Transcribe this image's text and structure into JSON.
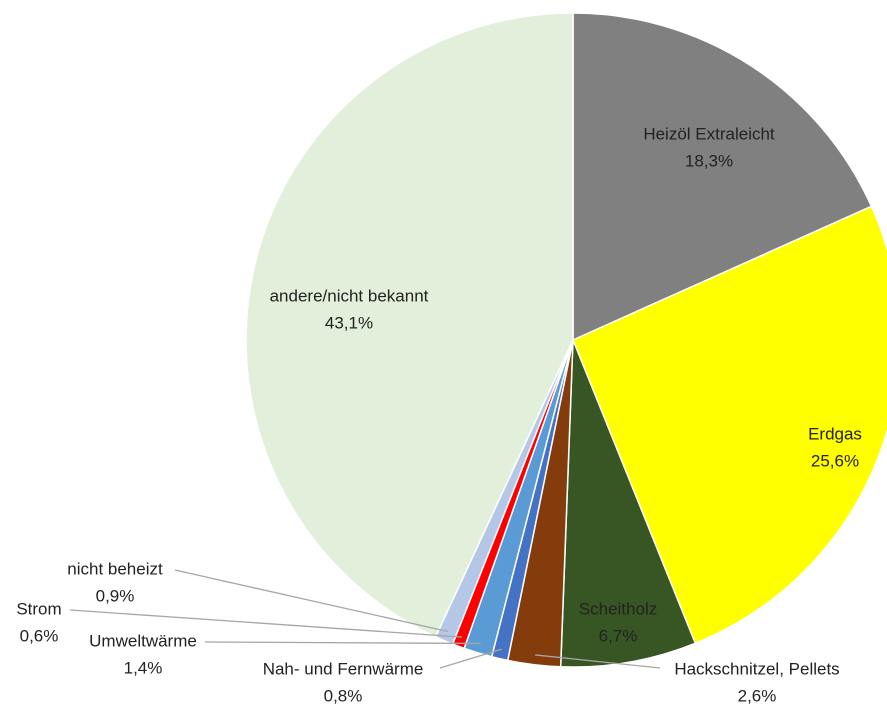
{
  "chart_data": {
    "type": "pie",
    "categories": [
      "Heizöl Extraleicht",
      "Erdgas",
      "Scheitholz",
      "Hackschnitzel, Pellets",
      "Nah- und Fernwärme",
      "Umweltwärme",
      "Strom",
      "nicht beheizt",
      "andere/nicht bekannt"
    ],
    "values": [
      18.3,
      25.6,
      6.7,
      2.6,
      0.8,
      1.4,
      0.6,
      0.9,
      43.1
    ],
    "value_labels": [
      "18,3%",
      "25,6%",
      "6,7%",
      "2,6%",
      "0,8%",
      "1,4%",
      "0,6%",
      "0,9%",
      "43,1%"
    ],
    "colors": [
      "#808080",
      "#ffff00",
      "#375623",
      "#843c0c",
      "#4472c4",
      "#5b9bd5",
      "#ff0000",
      "#b4c7e7",
      "#e2efda"
    ]
  }
}
